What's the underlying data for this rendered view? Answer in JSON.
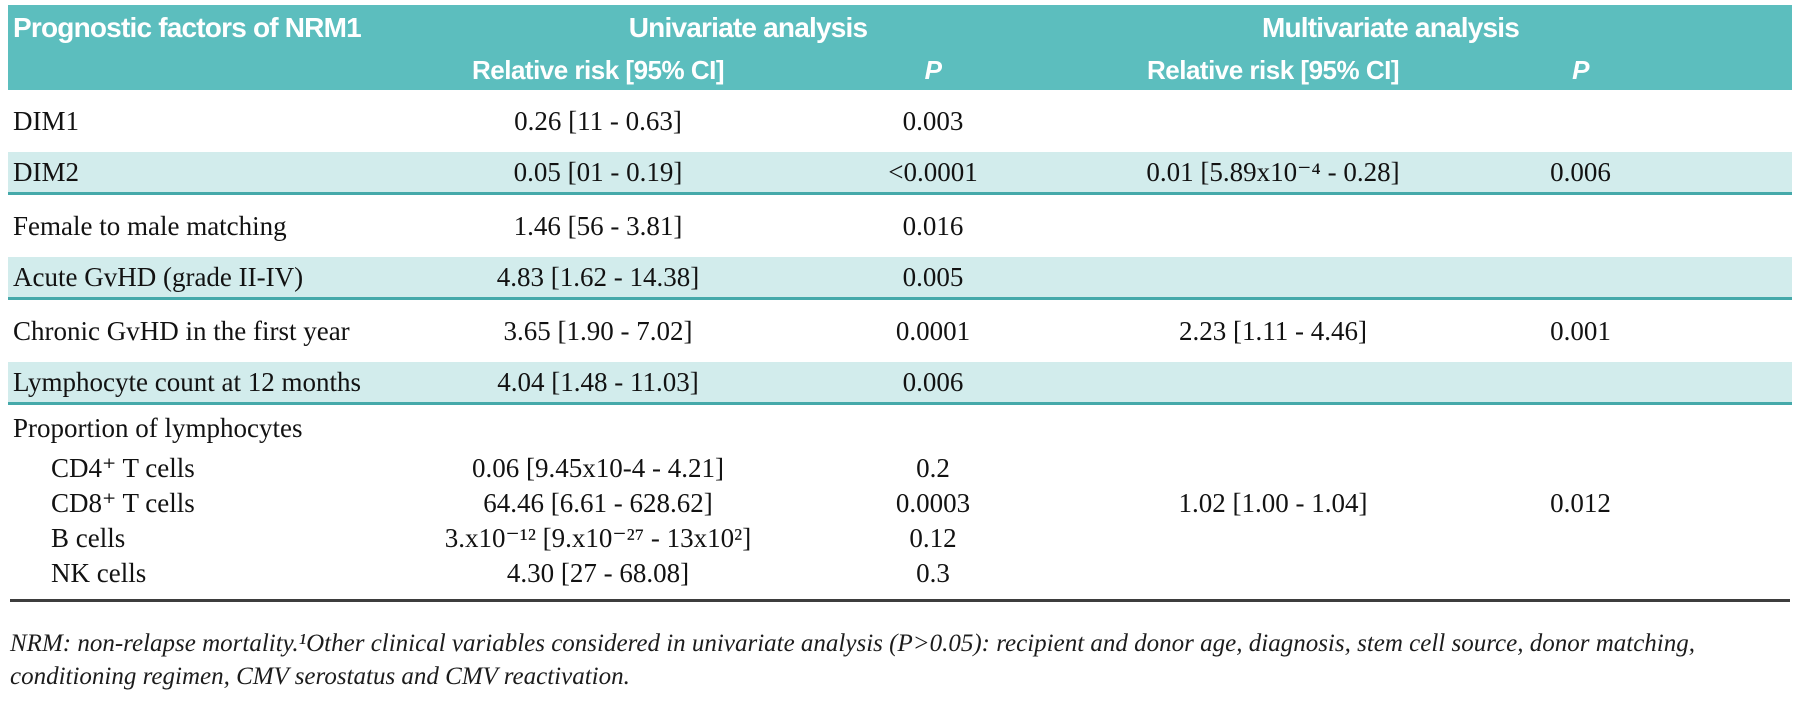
{
  "colors": {
    "header-teal": "#5cbebe",
    "row-teal": "#d2ecec",
    "row-border-teal": "#45a9aa",
    "rule": "#3d3d3d"
  },
  "table": {
    "header": {
      "col1": "Prognostic factors of NRM1",
      "group1": "Univariate analysis",
      "group2": "Multivariate analysis",
      "sub_rr1": "Relative risk [95% CI]",
      "sub_p1": "P",
      "sub_rr2": "Relative risk [95% CI]",
      "sub_p2": "P"
    },
    "rows": [
      {
        "label": "DIM1",
        "uni_rr": "0.26 [11 - 0.63]",
        "uni_p": "0.003",
        "multi_rr": "",
        "multi_p": "",
        "variant": "plain"
      },
      {
        "label": "DIM2",
        "uni_rr": "0.05 [01 - 0.19]",
        "uni_p": "<0.0001",
        "multi_rr": "0.01 [5.89x10⁻⁴ - 0.28]",
        "multi_p": "0.006",
        "variant": "shaded"
      },
      {
        "label": "Female to male matching",
        "uni_rr": "1.46 [56 - 3.81]",
        "uni_p": "0.016",
        "multi_rr": "",
        "multi_p": "",
        "variant": "plain"
      },
      {
        "label": "Acute GvHD (grade II-IV)",
        "uni_rr": "4.83 [1.62 - 14.38]",
        "uni_p": "0.005",
        "multi_rr": "",
        "multi_p": "",
        "variant": "shaded"
      },
      {
        "label": "Chronic GvHD in the first year",
        "uni_rr": "3.65 [1.90 - 7.02]",
        "uni_p": "0.0001",
        "multi_rr": "2.23 [1.11 - 4.46]",
        "multi_p": "0.001",
        "variant": "plain"
      },
      {
        "label": "Lymphocyte count at 12 months",
        "uni_rr": "4.04 [1.48 - 11.03]",
        "uni_p": "0.006",
        "multi_rr": "",
        "multi_p": "",
        "variant": "shaded"
      },
      {
        "label": "Proportion of lymphocytes",
        "uni_rr": "",
        "uni_p": "",
        "multi_rr": "",
        "multi_p": "",
        "variant": "section"
      },
      {
        "label": "CD4⁺ T cells",
        "uni_rr": "0.06 [9.45x10-4 - 4.21]",
        "uni_p": "0.2",
        "multi_rr": "",
        "multi_p": "",
        "variant": "sub"
      },
      {
        "label": "CD8⁺ T cells",
        "uni_rr": "64.46 [6.61 - 628.62]",
        "uni_p": "0.0003",
        "multi_rr": "1.02 [1.00 - 1.04]",
        "multi_p": "0.012",
        "variant": "sub"
      },
      {
        "label": "B cells",
        "uni_rr": "3.x10⁻¹² [9.x10⁻²⁷ - 13x10²]",
        "uni_p": "0.12",
        "multi_rr": "",
        "multi_p": "",
        "variant": "sub"
      },
      {
        "label": "NK cells",
        "uni_rr": "4.30 [27 - 68.08]",
        "uni_p": "0.3",
        "multi_rr": "",
        "multi_p": "",
        "variant": "sub"
      }
    ],
    "footnote": "NRM: non-relapse mortality.¹Other clinical variables considered in univariate analysis (P>0.05): recipient and donor age, diagnosis, stem cell source, donor matching, conditioning regimen, CMV serostatus and CMV reactivation."
  }
}
